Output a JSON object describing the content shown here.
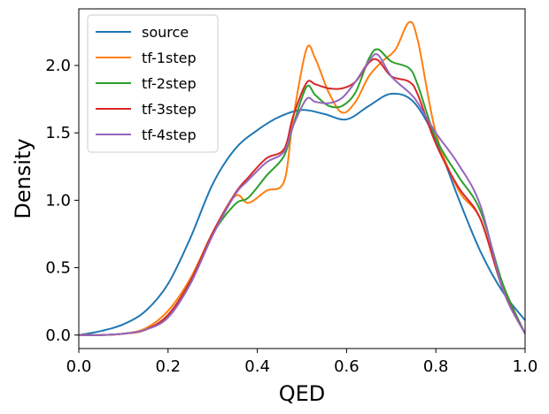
{
  "chart_data": {
    "type": "line",
    "title": "",
    "xlabel": "QED",
    "ylabel": "Density",
    "xlim": [
      0.0,
      1.0
    ],
    "ylim": [
      -0.1,
      2.42
    ],
    "xticks": [
      0.0,
      0.2,
      0.4,
      0.6,
      0.8,
      1.0
    ],
    "xtick_labels": [
      "0.0",
      "0.2",
      "0.4",
      "0.6",
      "0.8",
      "1.0"
    ],
    "yticks": [
      0.0,
      0.5,
      1.0,
      1.5,
      2.0
    ],
    "ytick_labels": [
      "0.0",
      "0.5",
      "1.0",
      "1.5",
      "2.0"
    ],
    "grid": false,
    "legend_position": "top-left",
    "series": [
      {
        "name": "source",
        "color": "#1f77b4",
        "x": [
          0.0,
          0.05,
          0.1,
          0.15,
          0.2,
          0.25,
          0.3,
          0.35,
          0.4,
          0.45,
          0.5,
          0.55,
          0.6,
          0.65,
          0.7,
          0.75,
          0.8,
          0.85,
          0.9,
          0.95,
          1.0
        ],
        "y": [
          0.0,
          0.03,
          0.08,
          0.18,
          0.38,
          0.72,
          1.12,
          1.38,
          1.52,
          1.62,
          1.67,
          1.64,
          1.6,
          1.7,
          1.79,
          1.73,
          1.45,
          1.02,
          0.62,
          0.32,
          0.11
        ]
      },
      {
        "name": "tf-1step",
        "color": "#ff7f0e",
        "x": [
          0.0,
          0.05,
          0.1,
          0.15,
          0.2,
          0.25,
          0.3,
          0.35,
          0.38,
          0.42,
          0.46,
          0.48,
          0.51,
          0.53,
          0.56,
          0.59,
          0.62,
          0.65,
          0.68,
          0.71,
          0.74,
          0.76,
          0.8,
          0.85,
          0.9,
          0.95,
          1.0
        ],
        "y": [
          0.0,
          0.0,
          0.01,
          0.05,
          0.18,
          0.42,
          0.76,
          1.03,
          0.98,
          1.07,
          1.14,
          1.6,
          2.12,
          2.05,
          1.8,
          1.65,
          1.73,
          1.92,
          2.03,
          2.12,
          2.32,
          2.18,
          1.5,
          1.08,
          0.86,
          0.35,
          0.01
        ]
      },
      {
        "name": "tf-2step",
        "color": "#2ca02c",
        "x": [
          0.0,
          0.05,
          0.1,
          0.15,
          0.2,
          0.25,
          0.3,
          0.35,
          0.38,
          0.42,
          0.46,
          0.48,
          0.51,
          0.53,
          0.56,
          0.59,
          0.62,
          0.65,
          0.67,
          0.7,
          0.74,
          0.76,
          0.8,
          0.85,
          0.9,
          0.95,
          1.0
        ],
        "y": [
          0.0,
          0.0,
          0.01,
          0.04,
          0.15,
          0.4,
          0.75,
          0.97,
          1.02,
          1.18,
          1.33,
          1.55,
          1.84,
          1.78,
          1.7,
          1.7,
          1.8,
          2.05,
          2.12,
          2.03,
          1.98,
          1.85,
          1.46,
          1.18,
          0.92,
          0.38,
          0.01
        ]
      },
      {
        "name": "tf-3step",
        "color": "#d62728",
        "x": [
          0.0,
          0.05,
          0.1,
          0.15,
          0.2,
          0.25,
          0.3,
          0.35,
          0.38,
          0.42,
          0.46,
          0.48,
          0.51,
          0.53,
          0.56,
          0.59,
          0.62,
          0.65,
          0.67,
          0.7,
          0.74,
          0.76,
          0.8,
          0.85,
          0.9,
          0.95,
          1.0
        ],
        "y": [
          0.0,
          0.0,
          0.01,
          0.04,
          0.15,
          0.4,
          0.76,
          1.05,
          1.17,
          1.31,
          1.38,
          1.62,
          1.87,
          1.86,
          1.83,
          1.83,
          1.88,
          2.02,
          2.04,
          1.92,
          1.88,
          1.78,
          1.42,
          1.1,
          0.86,
          0.34,
          0.01
        ]
      },
      {
        "name": "tf-4step",
        "color": "#9467bd",
        "x": [
          0.0,
          0.05,
          0.1,
          0.15,
          0.2,
          0.25,
          0.3,
          0.35,
          0.38,
          0.42,
          0.46,
          0.48,
          0.51,
          0.53,
          0.56,
          0.59,
          0.62,
          0.65,
          0.67,
          0.7,
          0.74,
          0.76,
          0.8,
          0.85,
          0.9,
          0.95,
          1.0
        ],
        "y": [
          0.0,
          0.0,
          0.01,
          0.04,
          0.13,
          0.38,
          0.74,
          1.04,
          1.15,
          1.28,
          1.36,
          1.55,
          1.75,
          1.73,
          1.72,
          1.76,
          1.88,
          2.03,
          2.08,
          1.92,
          1.8,
          1.72,
          1.5,
          1.27,
          0.96,
          0.34,
          0.01
        ]
      }
    ]
  }
}
